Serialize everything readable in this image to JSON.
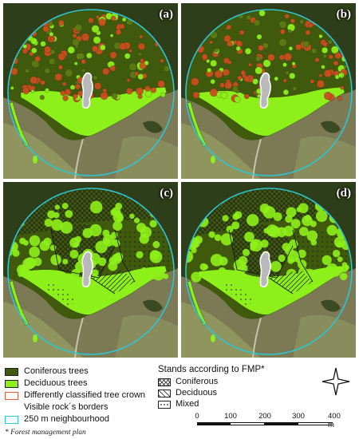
{
  "panels": [
    {
      "label": "(a)",
      "type": "crowns-diff"
    },
    {
      "label": "(b)",
      "type": "crowns-diff"
    },
    {
      "label": "(c)",
      "type": "stands"
    },
    {
      "label": "(d)",
      "type": "stands"
    }
  ],
  "legend": {
    "items": [
      {
        "label": "Coniferous trees",
        "symbol": "fill",
        "color": "#3f5a0c"
      },
      {
        "label": "Deciduous trees",
        "symbol": "fill",
        "color": "#8ef01a"
      },
      {
        "label": "Differently classified tree crown",
        "symbol": "outline",
        "color": "#e06040"
      },
      {
        "label": "Visible rock´s borders",
        "symbol": "none",
        "color": "#ffffff"
      },
      {
        "label": "250 m neighbourhood",
        "symbol": "outline",
        "color": "#2ec4d4"
      }
    ],
    "stands_title": "Stands according to FMP*",
    "stands": [
      {
        "label": "Coniferous",
        "pattern": "crosshatch"
      },
      {
        "label": "Deciduous",
        "pattern": "diagonal"
      },
      {
        "label": "Mixed",
        "pattern": "dots"
      }
    ],
    "footnote": "* Forest management plan"
  },
  "scalebar": {
    "ticks": [
      "0",
      "100",
      "200",
      "300",
      "400 m"
    ]
  },
  "colors": {
    "aerial": "#7b7a55",
    "field": "#9aa063",
    "forest_dark": "#2e3d1a",
    "circle": "#2ec4d4",
    "conifer": "#3f5a0c",
    "deciduous": "#8ef01a",
    "diff": "#c9501e"
  },
  "icons": {
    "north": "compass-star-icon"
  }
}
